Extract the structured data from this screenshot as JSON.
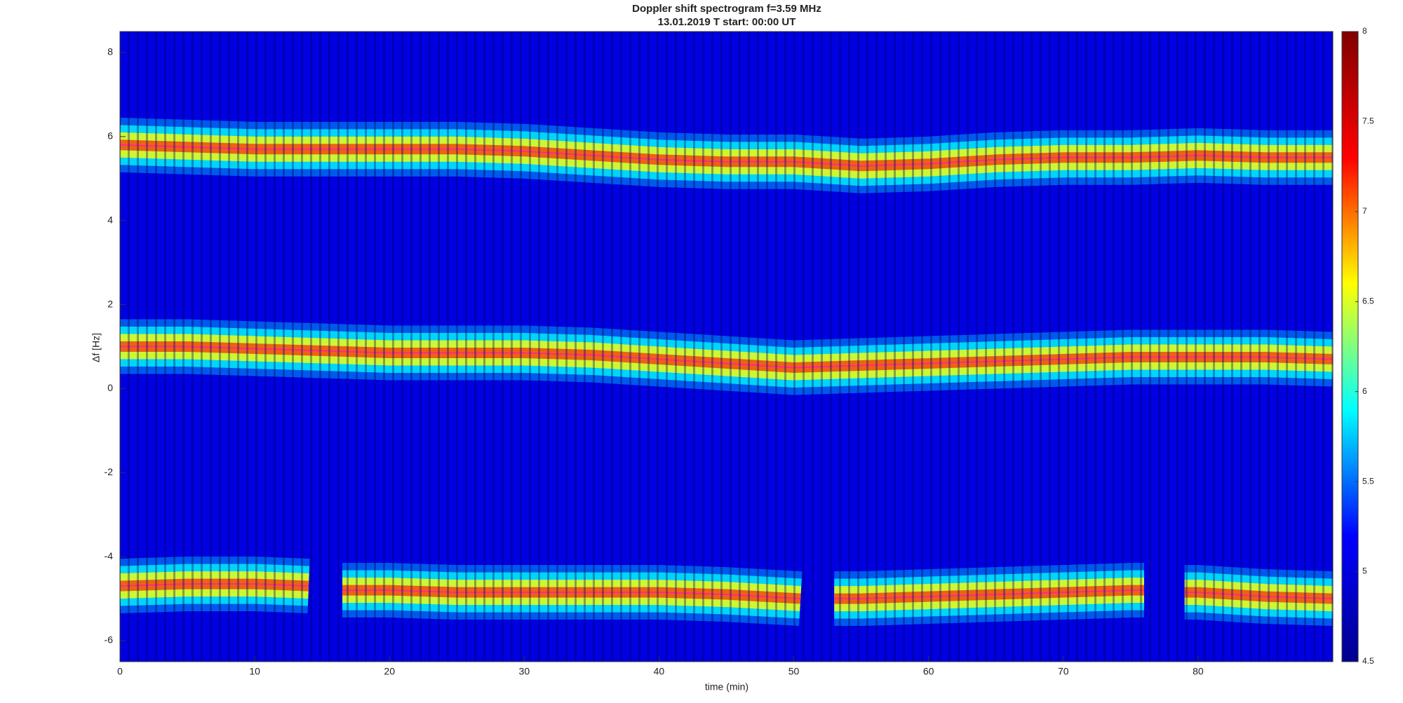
{
  "chart_data": {
    "type": "spectrogram",
    "title": "Doppler shift spectrogram f=3.59 MHz",
    "subtitle": "13.01.2019   T start: 00:00 UT",
    "x_label": "time (min)",
    "y_label": "Δf [Hz]",
    "xlim": [
      0,
      90
    ],
    "xticks": [
      0,
      10,
      20,
      30,
      40,
      50,
      60,
      70,
      80
    ],
    "ylim": [
      -6.5,
      8.5
    ],
    "yticks": [
      -6,
      -4,
      -2,
      0,
      2,
      4,
      6,
      8
    ],
    "clim": [
      4.5,
      8
    ],
    "cticks": [
      4.5,
      5,
      5.5,
      6,
      6.5,
      7,
      7.5,
      8
    ],
    "colormap": [
      "#00008f",
      "#0000ff",
      "#00ffff",
      "#ffff00",
      "#ff0000",
      "#800000"
    ],
    "series": [
      {
        "color": "#ff2a8a",
        "x": [
          0,
          5,
          10,
          15,
          20,
          25,
          30,
          35,
          40,
          45,
          50,
          55,
          60,
          65,
          70,
          75,
          80,
          85,
          90
        ],
        "values": [
          5.8,
          5.75,
          5.7,
          5.7,
          5.7,
          5.7,
          5.65,
          5.55,
          5.45,
          5.4,
          5.4,
          5.3,
          5.35,
          5.45,
          5.5,
          5.5,
          5.55,
          5.5,
          5.5
        ]
      },
      {
        "color": "#ff2a8a",
        "x": [
          0,
          5,
          10,
          15,
          20,
          25,
          30,
          35,
          40,
          45,
          50,
          55,
          60,
          65,
          70,
          75,
          80,
          85,
          90
        ],
        "values": [
          1.0,
          1.0,
          0.95,
          0.9,
          0.85,
          0.85,
          0.85,
          0.8,
          0.7,
          0.6,
          0.5,
          0.55,
          0.6,
          0.65,
          0.7,
          0.75,
          0.75,
          0.75,
          0.7
        ]
      },
      {
        "color": "#ff2a8a",
        "x": [
          0,
          5,
          10,
          14,
          15,
          16.5,
          20,
          25,
          30,
          35,
          40,
          45,
          50.5,
          52,
          53,
          55,
          60,
          65,
          70,
          75,
          76,
          77.5,
          79,
          80,
          85,
          90
        ],
        "values": [
          -4.7,
          -4.65,
          -4.65,
          -4.7,
          null,
          -4.8,
          -4.8,
          -4.85,
          -4.85,
          -4.85,
          -4.85,
          -4.9,
          -5.0,
          null,
          -5.0,
          -5.0,
          -4.95,
          -4.9,
          -4.85,
          -4.8,
          -4.8,
          null,
          -4.85,
          -4.85,
          -4.95,
          -5.0
        ]
      }
    ]
  }
}
